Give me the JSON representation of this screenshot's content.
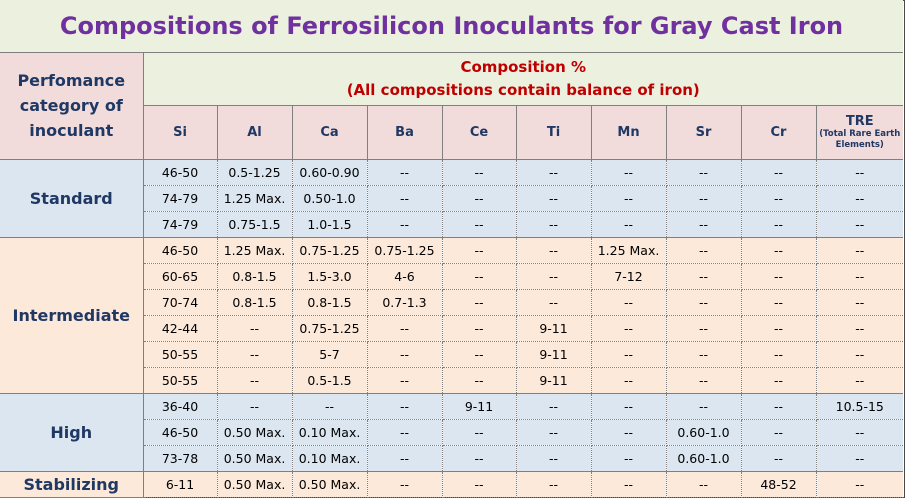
{
  "title": "Compositions of Ferrosilicon Inoculants for Gray Cast Iron",
  "header": {
    "category": "Perfomance category of inoculant",
    "composition_line1": "Composition %",
    "composition_line2": "(All compositions contain balance of iron)",
    "elements": [
      "Si",
      "Al",
      "Ca",
      "Ba",
      "Ce",
      "Ti",
      "Mn",
      "Sr",
      "Cr"
    ],
    "tre": "TRE",
    "tre_sub": "(Total Rare Earth Elements)"
  },
  "groups": [
    {
      "category": "Standard",
      "rows": [
        [
          "46-50",
          "0.5-1.25",
          "0.60-0.90",
          "--",
          "--",
          "--",
          "--",
          "--",
          "--",
          "--"
        ],
        [
          "74-79",
          "1.25 Max.",
          "0.50-1.0",
          "--",
          "--",
          "--",
          "--",
          "--",
          "--",
          "--"
        ],
        [
          "74-79",
          "0.75-1.5",
          "1.0-1.5",
          "--",
          "--",
          "--",
          "--",
          "--",
          "--",
          "--"
        ]
      ]
    },
    {
      "category": "Intermediate",
      "rows": [
        [
          "46-50",
          "1.25 Max.",
          "0.75-1.25",
          "0.75-1.25",
          "--",
          "--",
          "1.25 Max.",
          "--",
          "--",
          "--"
        ],
        [
          "60-65",
          "0.8-1.5",
          "1.5-3.0",
          "4-6",
          "--",
          "--",
          "7-12",
          "--",
          "--",
          "--"
        ],
        [
          "70-74",
          "0.8-1.5",
          "0.8-1.5",
          "0.7-1.3",
          "--",
          "--",
          "--",
          "--",
          "--",
          "--"
        ],
        [
          "42-44",
          "--",
          "0.75-1.25",
          "--",
          "--",
          "9-11",
          "--",
          "--",
          "--",
          "--"
        ],
        [
          "50-55",
          "--",
          "5-7",
          "--",
          "--",
          "9-11",
          "--",
          "--",
          "--",
          "--"
        ],
        [
          "50-55",
          "--",
          "0.5-1.5",
          "--",
          "--",
          "9-11",
          "--",
          "--",
          "--",
          "--"
        ]
      ]
    },
    {
      "category": "High",
      "rows": [
        [
          "36-40",
          "--",
          "--",
          "--",
          "9-11",
          "--",
          "--",
          "--",
          "--",
          "10.5-15"
        ],
        [
          "46-50",
          "0.50 Max.",
          "0.10 Max.",
          "--",
          "--",
          "--",
          "--",
          "0.60-1.0",
          "--",
          "--"
        ],
        [
          "73-78",
          "0.50 Max.",
          "0.10 Max.",
          "--",
          "--",
          "--",
          "--",
          "0.60-1.0",
          "--",
          "--"
        ]
      ]
    },
    {
      "category": "Stabilizing",
      "rows": [
        [
          "6-11",
          "0.50 Max.",
          "0.50 Max.",
          "--",
          "--",
          "--",
          "--",
          "--",
          "48-52",
          "--"
        ]
      ]
    }
  ]
}
